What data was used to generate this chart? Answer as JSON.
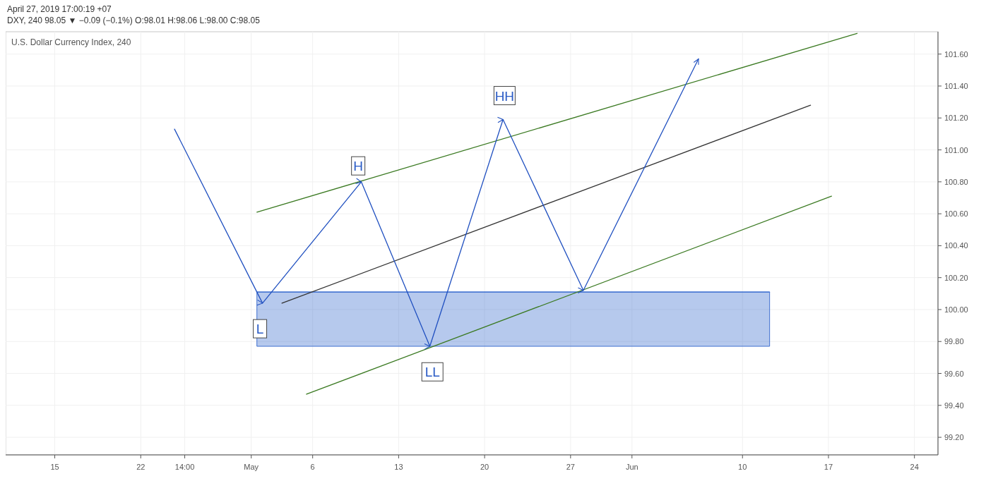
{
  "chart_data": {
    "type": "line",
    "title": "U.S. Dollar Currency Index, 240",
    "subtitle": "April 27, 2019 17:00:19 +07",
    "annotations": [
      "DXY, 240 98.05 ▼ −0.09 (−0.1%) O:98.01 H:98.06 L:98.00 C:98.05",
      {
        "text": "L",
        "x": "2019-05-01T17:00",
        "y": 99.88
      },
      {
        "text": "H",
        "x": "2019-05-09T17:00",
        "y": 100.9
      },
      {
        "text": "LL",
        "x": "2019-05-15T18:00",
        "y": 99.61
      },
      {
        "text": "HH",
        "x": "2019-05-21T15:00",
        "y": 101.34
      }
    ],
    "xlim": [
      "2019-04-11",
      "2019-06-25T22:00"
    ],
    "xticks": [
      {
        "value": "2019-04-15",
        "label": "15"
      },
      {
        "value": "2019-04-22",
        "label": "22"
      },
      {
        "value": "2019-04-25T14:00",
        "label": "14:00"
      },
      {
        "value": "2019-05-01",
        "label": "May"
      },
      {
        "value": "2019-05-06",
        "label": "6"
      },
      {
        "value": "2019-05-13",
        "label": "13"
      },
      {
        "value": "2019-05-20",
        "label": "20"
      },
      {
        "value": "2019-05-27",
        "label": "27"
      },
      {
        "value": "2019-06-01",
        "label": "Jun"
      },
      {
        "value": "2019-06-10",
        "label": "10"
      },
      {
        "value": "2019-06-17",
        "label": "17"
      },
      {
        "value": "2019-06-24",
        "label": "24"
      }
    ],
    "ylim": [
      99.09,
      101.74
    ],
    "yticks": [
      {
        "value": 99.2,
        "label": "99.20"
      },
      {
        "value": 99.4,
        "label": "99.40"
      },
      {
        "value": 99.6,
        "label": "99.60"
      },
      {
        "value": 99.8,
        "label": "99.80"
      },
      {
        "value": 100,
        "label": "100.00"
      },
      {
        "value": 100.2,
        "label": "100.20"
      },
      {
        "value": 100.4,
        "label": "100.40"
      },
      {
        "value": 100.6,
        "label": "100.60"
      },
      {
        "value": 100.8,
        "label": "100.80"
      },
      {
        "value": 101,
        "label": "101.00"
      },
      {
        "value": 101.2,
        "label": "101.20"
      },
      {
        "value": 101.4,
        "label": "101.40"
      },
      {
        "value": 101.6,
        "label": "101.60"
      }
    ],
    "grid": true,
    "legend": false,
    "marker": "none",
    "line_style": "solid",
    "series": [
      {
        "color": "#3f70d0",
        "x": [
          "2019-05-01T11:00",
          "2019-06-12T05:00"
        ],
        "values": [
          100.11,
          100.11
        ],
        "lower": [
          99.77,
          99.77
        ],
        "upper": [
          100.11,
          100.11
        ]
      },
      {
        "color": "#3b7a22",
        "x": [
          "2019-05-01T11:00",
          "2019-06-19T08:00"
        ],
        "values": [
          100.61,
          101.73
        ]
      },
      {
        "color": "#333333",
        "x": [
          "2019-05-03T12:00",
          "2019-06-15T13:00"
        ],
        "values": [
          100.04,
          101.28
        ]
      },
      {
        "color": "#3b7a22",
        "x": [
          "2019-05-05T12:00",
          "2019-06-17T06:00"
        ],
        "values": [
          99.47,
          100.71
        ]
      },
      {
        "color": "#2050c0",
        "x": [
          "2019-04-24T18:00",
          "2019-05-01T22:00",
          "2019-05-09T23:00",
          "2019-05-15T13:00",
          "2019-05-21T12:00",
          "2019-05-28T01:00",
          "2019-06-06T10:00"
        ],
        "values": [
          101.13,
          100.04,
          100.8,
          99.77,
          101.19,
          100.12,
          101.57
        ]
      }
    ]
  }
}
